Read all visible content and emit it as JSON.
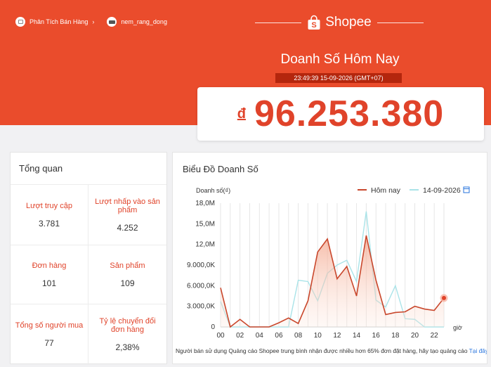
{
  "header": {
    "breadcrumb": [
      {
        "label": "Phân Tích Bán Hàng",
        "icon": "analytics-icon"
      },
      {
        "label": "nem_rang_dong",
        "icon": "shop-avatar"
      }
    ],
    "brand": "Shopee",
    "title": "Doanh Số Hôm Nay",
    "timestamp": "23:49:39 15-09-2026 (GMT+07)",
    "currency_symbol": "đ",
    "revenue": "96.253.380"
  },
  "overview": {
    "title": "Tổng quan",
    "metrics": [
      {
        "label": "Lượt truy cập",
        "value": "3.781"
      },
      {
        "label": "Lượt nhấp vào sản phẩm",
        "value": "4.252"
      },
      {
        "label": "Đơn hàng",
        "value": "101"
      },
      {
        "label": "Sản phẩm",
        "value": "109"
      },
      {
        "label": "Tổng số người mua",
        "value": "77"
      },
      {
        "label": "Tỷ lệ chuyển đổi đơn hàng",
        "value": "2,38%"
      }
    ]
  },
  "chart_panel": {
    "title": "Biểu Đồ Doanh Số",
    "footnote": "Người bán sử dụng Quảng cáo Shopee trung bình nhận được nhiều hơn 65% đơn đặt hàng, hãy tạo quảng cáo ",
    "footnote_link": "Tại đây !"
  },
  "chart_data": {
    "type": "line",
    "ylabel": "Doanh số(₫)",
    "xlabel": "giờ",
    "x": [
      0,
      1,
      2,
      3,
      4,
      5,
      6,
      7,
      8,
      9,
      10,
      11,
      12,
      13,
      14,
      15,
      16,
      17,
      18,
      19,
      20,
      21,
      22,
      23
    ],
    "x_tick_labels": [
      "00",
      "02",
      "04",
      "06",
      "08",
      "10",
      "12",
      "14",
      "16",
      "18",
      "20",
      "22"
    ],
    "y_ticks": [
      0,
      3000000,
      6000000,
      9000000,
      12000000,
      15000000,
      18000000
    ],
    "y_tick_labels": [
      "0",
      "3.000,0K",
      "6.000,0K",
      "9.000,0K",
      "12,0M",
      "15,0M",
      "18,0M"
    ],
    "ylim": [
      0,
      18000000
    ],
    "series": [
      {
        "name": "Hôm nay",
        "color": "#c9472c",
        "values": [
          5700000,
          0,
          1100000,
          0,
          0,
          0,
          600000,
          1300000,
          500000,
          3800000,
          10900000,
          12800000,
          7000000,
          8800000,
          4500000,
          13300000,
          6800000,
          1800000,
          2100000,
          2200000,
          3000000,
          2600000,
          2400000,
          4200000
        ]
      },
      {
        "name": "14-09-2026",
        "color": "#a9e3e8",
        "values": [
          3700000,
          0,
          0,
          0,
          0,
          0,
          0,
          0,
          6800000,
          6600000,
          3800000,
          7800000,
          9000000,
          9700000,
          6600000,
          16800000,
          3900000,
          2900000,
          6000000,
          1200000,
          1100000,
          0,
          0,
          0
        ]
      }
    ],
    "legend_position": "top-right",
    "grid": "vertical"
  }
}
